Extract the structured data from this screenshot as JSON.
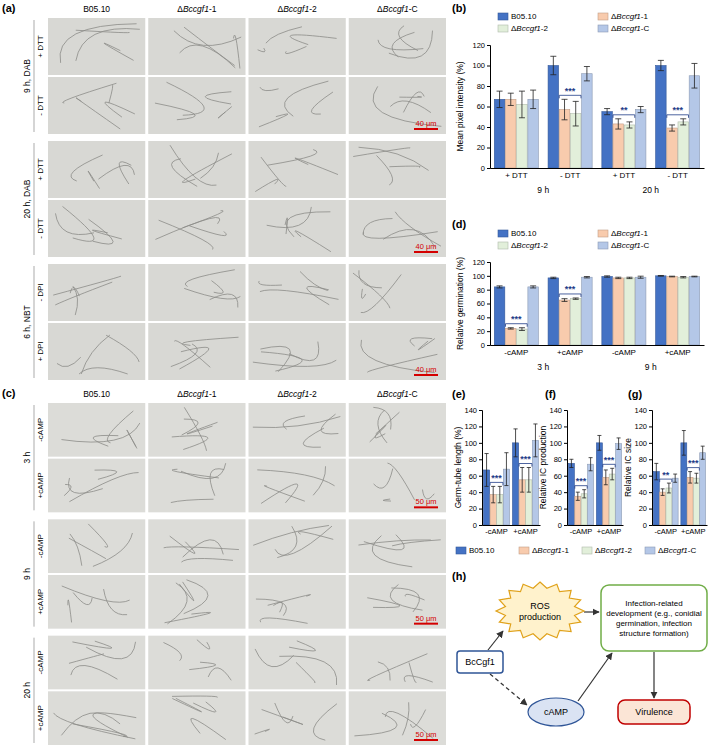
{
  "chart_data": [
    {
      "type": "bar",
      "panel": "(b)",
      "y_label": "Mean pixel intensity (%)",
      "categories": [
        "+ DTT",
        "- DTT",
        "+ DTT",
        "- DTT"
      ],
      "group_labels": [
        "9 h",
        "20 h"
      ],
      "ylim": [
        0,
        120
      ],
      "yticks": [
        0,
        20,
        40,
        60,
        80,
        100,
        120
      ],
      "grid": false,
      "legend": "top",
      "series": [
        {
          "name": "B05.10",
          "color": "#4472c4",
          "values": [
            67,
            100,
            55,
            100
          ],
          "errors": [
            8,
            9,
            3,
            5
          ]
        },
        {
          "name": "ΔBccgf1-1",
          "color": "#f8cbad",
          "values": [
            67,
            57,
            43,
            39
          ],
          "errors": [
            6,
            10,
            5,
            3
          ]
        },
        {
          "name": "ΔBccgf1-2",
          "color": "#e2efda",
          "values": [
            62,
            53,
            42,
            45
          ],
          "errors": [
            13,
            12,
            3,
            3
          ]
        },
        {
          "name": "ΔBccgf1-C",
          "color": "#b4c7e7",
          "values": [
            67,
            92,
            57,
            90
          ],
          "errors": [
            9,
            7,
            3,
            12
          ]
        }
      ],
      "annotations": [
        null,
        "***",
        "**",
        "***"
      ]
    },
    {
      "type": "bar",
      "panel": "(d)",
      "y_label": "Relative germination (%)",
      "categories": [
        "-cAMP",
        "+cAMP",
        "-cAMP",
        "+cAMP"
      ],
      "group_labels": [
        "3 h",
        "9 h"
      ],
      "ylim": [
        0,
        120
      ],
      "yticks": [
        0,
        20,
        40,
        60,
        80,
        100,
        120
      ],
      "grid": false,
      "legend": "top",
      "series": [
        {
          "name": "B05.10",
          "color": "#4472c4",
          "values": [
            84,
            97,
            99,
            100
          ],
          "errors": [
            1.5,
            1,
            1,
            0.5
          ]
        },
        {
          "name": "ΔBccgf1-1",
          "color": "#f8cbad",
          "values": [
            24,
            65,
            97,
            99
          ],
          "errors": [
            1,
            2,
            1,
            0.5
          ]
        },
        {
          "name": "ΔBccgf1-2",
          "color": "#e2efda",
          "values": [
            23,
            67,
            97,
            98
          ],
          "errors": [
            2,
            1,
            1,
            1
          ]
        },
        {
          "name": "ΔBccgf1-C",
          "color": "#b4c7e7",
          "values": [
            84,
            98,
            98,
            99
          ],
          "errors": [
            1.5,
            1,
            1.5,
            0.5
          ]
        }
      ],
      "annotations": [
        "***",
        "***",
        null,
        null
      ]
    },
    {
      "type": "bar",
      "panel": "(e)",
      "y_label": "Germ-tube length (%)",
      "categories": [
        "-cAMP",
        "+cAMP"
      ],
      "ylim": [
        0,
        140
      ],
      "yticks": [
        0,
        20,
        40,
        60,
        80,
        100,
        120,
        140
      ],
      "grid": false,
      "legend": "bottom",
      "series": [
        {
          "name": "B05.10",
          "color": "#4472c4",
          "values": [
            67,
            100
          ],
          "errors": [
            20,
            17
          ]
        },
        {
          "name": "ΔBccgf1-1",
          "color": "#f8cbad",
          "values": [
            37,
            55
          ],
          "errors": [
            10,
            15
          ]
        },
        {
          "name": "ΔBccgf1-2",
          "color": "#e2efda",
          "values": [
            37,
            55
          ],
          "errors": [
            10,
            15
          ]
        },
        {
          "name": "ΔBccgf1-C",
          "color": "#b4c7e7",
          "values": [
            68,
            103
          ],
          "errors": [
            20,
            20
          ]
        }
      ],
      "annotations": [
        "***",
        "***"
      ]
    },
    {
      "type": "bar",
      "panel": "(f)",
      "y_label": "Relative IC production",
      "categories": [
        "-cAMP",
        "+cAMP"
      ],
      "ylim": [
        0,
        140
      ],
      "yticks": [
        0,
        20,
        40,
        60,
        80,
        100,
        120,
        140
      ],
      "grid": false,
      "series": [
        {
          "color": "#4472c4",
          "values": [
            75,
            100
          ],
          "errors": [
            5,
            9
          ]
        },
        {
          "color": "#f8cbad",
          "values": [
            35,
            58
          ],
          "errors": [
            5,
            9
          ]
        },
        {
          "color": "#e2efda",
          "values": [
            38,
            62
          ],
          "errors": [
            5,
            7
          ]
        },
        {
          "color": "#b4c7e7",
          "values": [
            74,
            99
          ],
          "errors": [
            8,
            7
          ]
        }
      ],
      "annotations": [
        "***",
        "***"
      ]
    },
    {
      "type": "bar",
      "panel": "(g)",
      "y_label": "Relative IC size",
      "categories": [
        "-cAMP",
        "+cAMP"
      ],
      "ylim": [
        0,
        140
      ],
      "yticks": [
        0,
        20,
        40,
        60,
        80,
        100,
        120,
        140
      ],
      "grid": false,
      "series": [
        {
          "color": "#4472c4",
          "values": [
            65,
            100
          ],
          "errors": [
            10,
            15
          ]
        },
        {
          "color": "#f8cbad",
          "values": [
            40,
            58
          ],
          "errors": [
            4,
            7
          ]
        },
        {
          "color": "#e2efda",
          "values": [
            45,
            57
          ],
          "errors": [
            6,
            6
          ]
        },
        {
          "color": "#b4c7e7",
          "values": [
            57,
            88
          ],
          "errors": [
            5,
            8
          ]
        }
      ],
      "annotations": [
        "**",
        "***"
      ]
    }
  ],
  "image_panels": [
    {
      "panel": "(a)",
      "columns": [
        "B05.10",
        "ΔBccgf1-1",
        "ΔBccgf1-2",
        "ΔBccgf1-C"
      ],
      "sections": [
        {
          "label": "9 h, DAB",
          "rows": [
            "+ DTT",
            "- DTT"
          ],
          "scale_bar": "40 μm"
        },
        {
          "label": "20 h, DAB",
          "rows": [
            "+ DTT",
            "- DTT"
          ],
          "scale_bar": "40 μm"
        },
        {
          "label": "6 h, NBT",
          "rows": [
            "- DPI",
            "+ DPI"
          ],
          "scale_bar": "40 μm"
        }
      ]
    },
    {
      "panel": "(c)",
      "columns": [
        "B05.10",
        "ΔBccgf1-1",
        "ΔBccgf1-2",
        "ΔBccgf1-C"
      ],
      "sections": [
        {
          "label": "3 h",
          "rows": [
            "-cAMP",
            "+cAMP"
          ],
          "scale_bar": "50 μm"
        },
        {
          "label": "9 h",
          "rows": [
            "-cAMP",
            "+cAMP"
          ],
          "scale_bar": "50 μm"
        },
        {
          "label": "20 h",
          "rows": [
            "-cAMP",
            "+cAMP"
          ],
          "scale_bar": "50 μm"
        }
      ]
    }
  ],
  "diagram": {
    "panel": "(h)",
    "nodes": [
      "BcCgf1",
      "ROS production",
      "cAMP",
      "Infection-related development (e.g., conidial germination, infection structure formation)",
      "Virulence"
    ]
  }
}
